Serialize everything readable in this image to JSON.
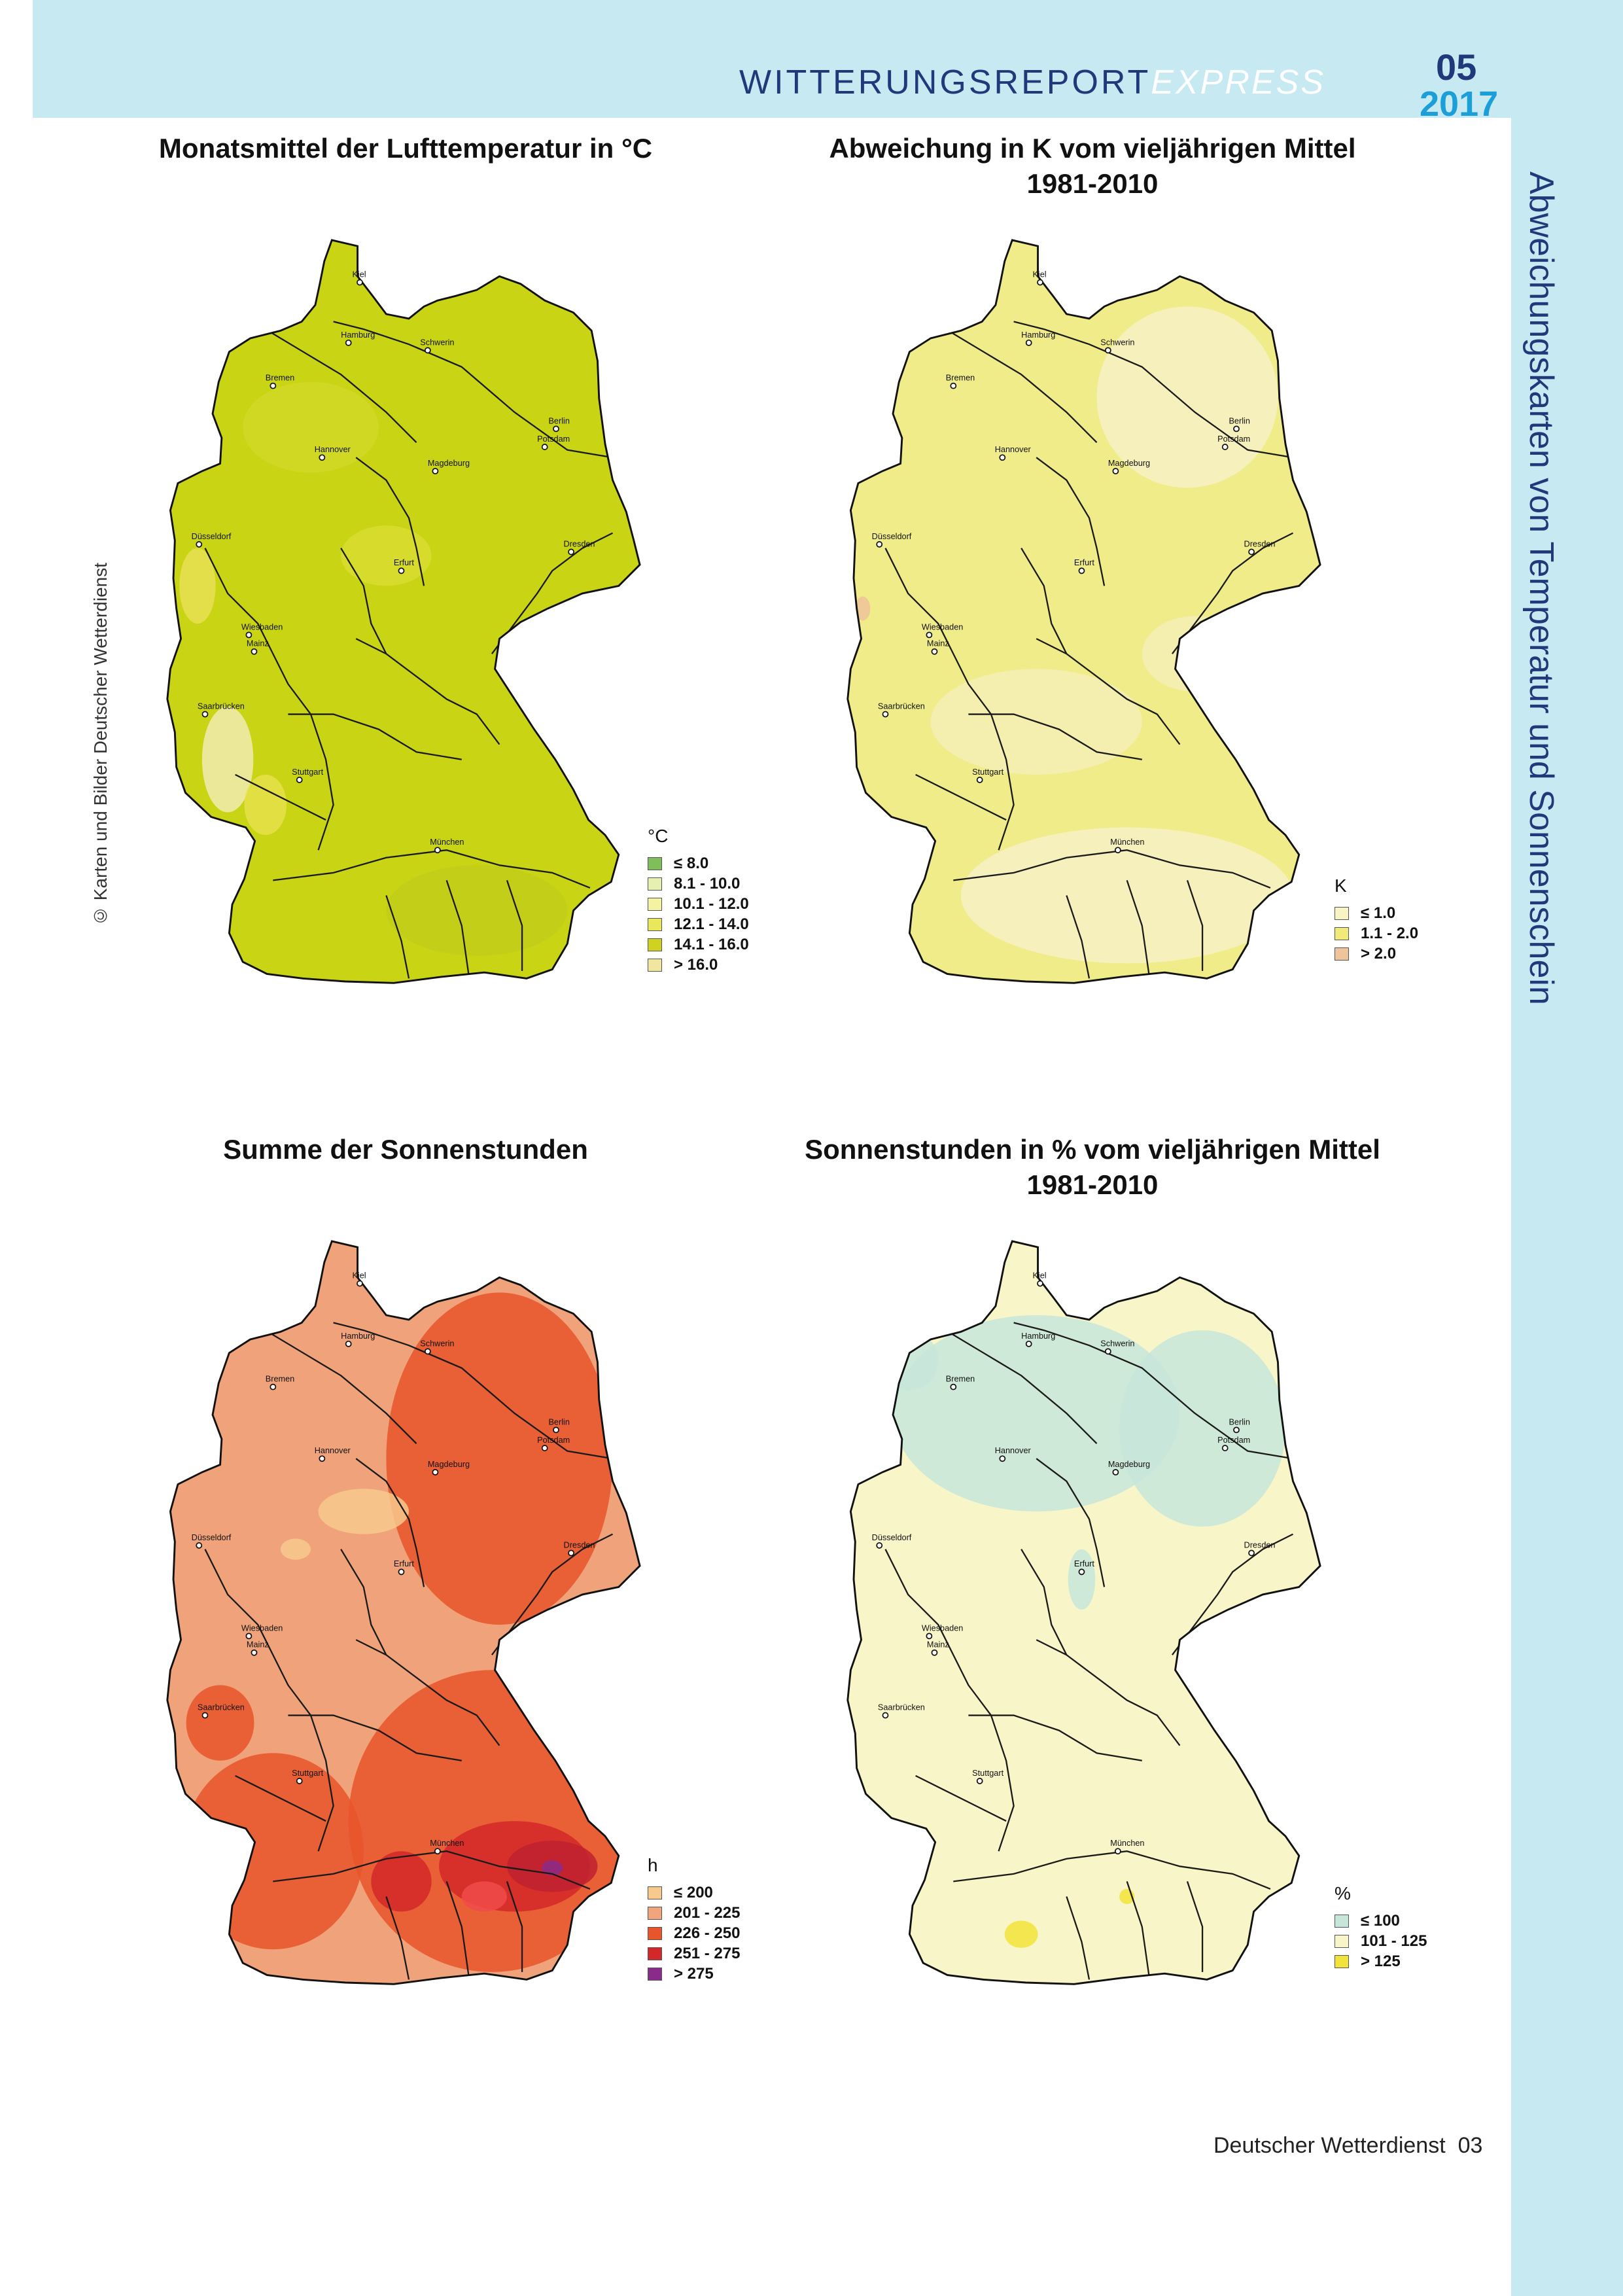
{
  "header": {
    "report_name": "WITTERUNGSREPORT",
    "report_suffix": "EXPRESS",
    "issue_number": "05",
    "issue_year": "2017",
    "side_title": "Abweichungskarten von Temperatur und Sonnenschein"
  },
  "copyright": "© Karten und Bilder Deutscher Wetterdienst",
  "city_labels": [
    "Kiel",
    "Hamburg",
    "Schwerin",
    "Bremen",
    "Berlin",
    "Potsdam",
    "Hannover",
    "Magdeburg",
    "Düsseldorf",
    "Dresden",
    "Erfurt",
    "Wiesbaden",
    "Mainz",
    "Saarbrücken",
    "Stuttgart",
    "München"
  ],
  "maps": [
    {
      "title_line1": "Monatsmittel der Lufttemperatur in °C",
      "title_line2": "",
      "legend_unit": "°C",
      "land_color": "#c8d414",
      "legend": [
        {
          "label": "≤  8.0",
          "color": "#7fbf5a"
        },
        {
          "label": "8.1 - 10.0",
          "color": "#e6f0b0"
        },
        {
          "label": "10.1 - 12.0",
          "color": "#f3f3a0"
        },
        {
          "label": "12.1 - 14.0",
          "color": "#e8e85a"
        },
        {
          "label": "14.1 - 16.0",
          "color": "#cfd21e"
        },
        {
          "label": ">  16.0",
          "color": "#f0e6a0"
        }
      ]
    },
    {
      "title_line1": "Abweichung in K vom vieljährigen Mittel",
      "title_line2": "1981-2010",
      "legend_unit": "K",
      "land_color": "#f1ec8a",
      "legend": [
        {
          "label": "≤  1.0",
          "color": "#f8f4c4"
        },
        {
          "label": "1.1 - 2.0",
          "color": "#f1e97a"
        },
        {
          "label": ">  2.0",
          "color": "#efc49a"
        }
      ]
    },
    {
      "title_line1": "Summe der Sonnenstunden",
      "title_line2": "",
      "legend_unit": "h",
      "land_color": "#f0a37a",
      "legend": [
        {
          "label": "≤  200",
          "color": "#f7c98d"
        },
        {
          "label": "201 - 225",
          "color": "#f2a47c"
        },
        {
          "label": "226 - 250",
          "color": "#e8552a"
        },
        {
          "label": "251 - 275",
          "color": "#d42828"
        },
        {
          "label": ">  275",
          "color": "#8a2a8a"
        }
      ]
    },
    {
      "title_line1": "Sonnenstunden in % vom vieljährigen Mittel",
      "title_line2": "1981-2010",
      "legend_unit": "%",
      "land_color": "#f8f5c8",
      "legend": [
        {
          "label": "≤  100",
          "color": "#c7e6da"
        },
        {
          "label": "101 - 125",
          "color": "#f8f5c8"
        },
        {
          "label": ">  125",
          "color": "#f2e33a"
        }
      ]
    }
  ],
  "footer": {
    "publisher": "Deutscher Wetterdienst",
    "page_number": "03"
  }
}
